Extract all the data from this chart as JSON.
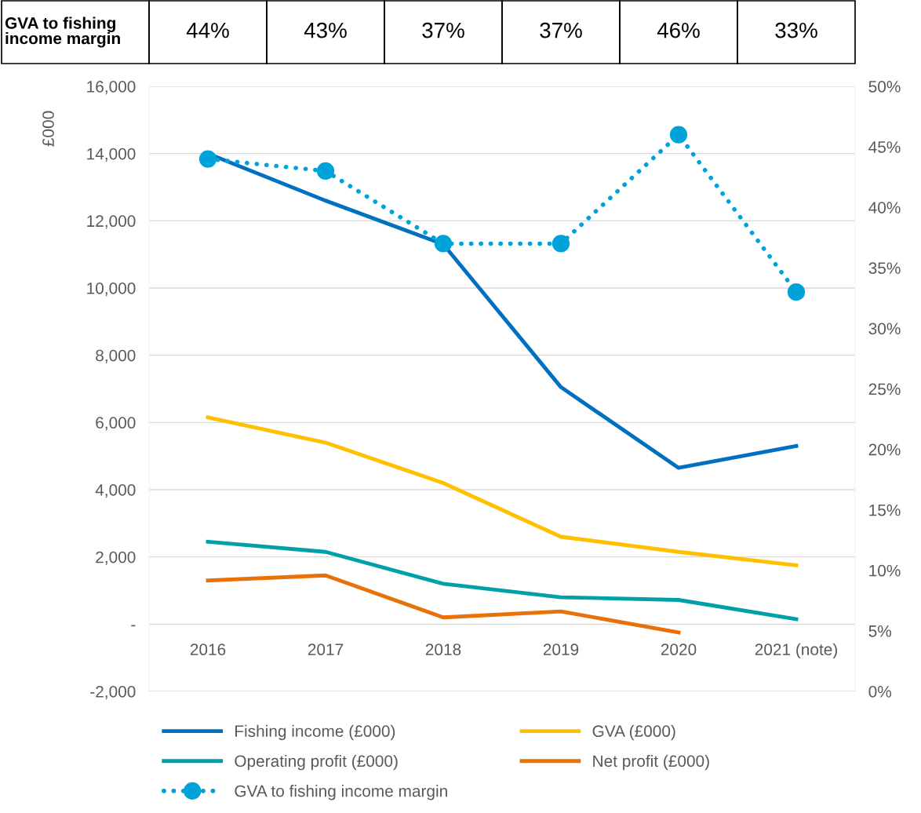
{
  "chart_data": {
    "type": "line",
    "categories": [
      "2016",
      "2017",
      "2018",
      "2019",
      "2020",
      "2021 (note)"
    ],
    "ylabel": "£000",
    "ylim": [
      -2000,
      16000
    ],
    "yticks": [
      {
        "value": -2000,
        "label": "-2,000"
      },
      {
        "value": 0,
        "label": "-"
      },
      {
        "value": 2000,
        "label": "2,000"
      },
      {
        "value": 4000,
        "label": "4,000"
      },
      {
        "value": 6000,
        "label": "6,000"
      },
      {
        "value": 8000,
        "label": "8,000"
      },
      {
        "value": 10000,
        "label": "10,000"
      },
      {
        "value": 12000,
        "label": "12,000"
      },
      {
        "value": 14000,
        "label": "14,000"
      },
      {
        "value": 16000,
        "label": "16,000"
      }
    ],
    "y2lim": [
      0,
      50
    ],
    "y2ticks": [
      {
        "value": 0,
        "label": "0%"
      },
      {
        "value": 5,
        "label": "5%"
      },
      {
        "value": 10,
        "label": "10%"
      },
      {
        "value": 15,
        "label": "15%"
      },
      {
        "value": 20,
        "label": "20%"
      },
      {
        "value": 25,
        "label": "25%"
      },
      {
        "value": 30,
        "label": "30%"
      },
      {
        "value": 35,
        "label": "35%"
      },
      {
        "value": 40,
        "label": "40%"
      },
      {
        "value": 45,
        "label": "45%"
      },
      {
        "value": 50,
        "label": "50%"
      }
    ],
    "grid": "y",
    "legend": "bottom",
    "series": [
      {
        "name": "Fishing income (£000)",
        "color": "#0070c0",
        "values": [
          14000,
          12600,
          11300,
          7050,
          4650,
          5300
        ]
      },
      {
        "name": "GVA (£000)",
        "color": "#ffc000",
        "values": [
          6150,
          5400,
          4200,
          2600,
          2150,
          1750
        ]
      },
      {
        "name": "Operating profit (£000)",
        "color": "#00a0a8",
        "values": [
          2450,
          2150,
          1200,
          800,
          720,
          150
        ]
      },
      {
        "name": "Net profit (£000)",
        "color": "#e8710a",
        "values": [
          1300,
          1450,
          200,
          380,
          -250,
          null
        ]
      },
      {
        "name": "GVA to fishing income margin",
        "color": "#00a3d9",
        "axis": "y2",
        "marker": "circle",
        "line_style": "dotted",
        "values": [
          44,
          43,
          37,
          37,
          46,
          33
        ],
        "value_labels": [
          "44%",
          "43%",
          "37%",
          "37%",
          "46%",
          "33%"
        ]
      }
    ]
  }
}
